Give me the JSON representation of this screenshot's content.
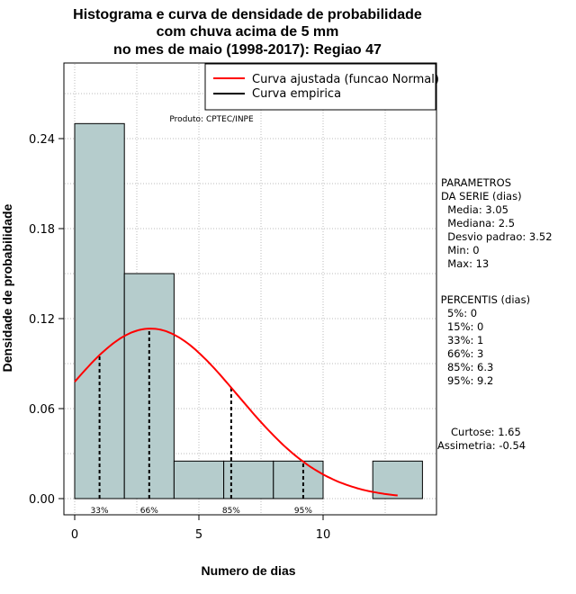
{
  "chart_data": {
    "type": "bar",
    "title": [
      "Histograma e curva de densidade de probabilidade",
      "com chuva acima de 5 mm",
      "no mes de maio (1998-2017): Regiao 47"
    ],
    "xlabel": "Numero de dias",
    "ylabel": "Densidade de probabilidade",
    "xlim": [
      -0.5,
      14.5
    ],
    "ylim": [
      -0.01,
      0.29
    ],
    "x_ticks": [
      0,
      5,
      10
    ],
    "y_ticks": [
      0.0,
      0.06,
      0.12,
      0.18,
      0.24
    ],
    "y_tick_labels": [
      "0.00",
      "0.06",
      "0.12",
      "0.18",
      "0.24"
    ],
    "grid": true,
    "bar_color": "#b5cccc",
    "bins": [
      {
        "x0": 0,
        "x1": 2,
        "density": 0.25
      },
      {
        "x0": 2,
        "x1": 4,
        "density": 0.15
      },
      {
        "x0": 4,
        "x1": 6,
        "density": 0.025
      },
      {
        "x0": 6,
        "x1": 8,
        "density": 0.025
      },
      {
        "x0": 8,
        "x1": 10,
        "density": 0.025
      },
      {
        "x0": 10,
        "x1": 12,
        "density": 0.0
      },
      {
        "x0": 12,
        "x1": 14,
        "density": 0.025
      }
    ],
    "fitted_curve": {
      "name": "Curva ajustada (funcao Normal)",
      "color": "#ff0000",
      "mean": 3.05,
      "sd": 3.52,
      "x_from": 0,
      "x_to": 13
    },
    "empirical_curve": {
      "name": "Curva empirica",
      "color": "#000000"
    },
    "legend_position": "top-right",
    "source_note": "Produto: CPTEC/INPE",
    "percentile_lines": [
      {
        "label": "33%",
        "x": 1
      },
      {
        "label": "66%",
        "x": 3
      },
      {
        "label": "85%",
        "x": 6.3
      },
      {
        "label": "95%",
        "x": 9.2
      }
    ]
  },
  "parametros": {
    "lines": [
      "PARAMETROS",
      "DA SERIE (dias)",
      "  Media: 3.05",
      "  Mediana: 2.5",
      "  Desvio padrao: 3.52",
      "  Min: 0",
      "  Max: 13"
    ]
  },
  "percentis": {
    "lines": [
      " PERCENTIS (dias)",
      "   5%: 0",
      "   15%: 0",
      "   33%: 1",
      "   66%: 3",
      "   85%: 6.3",
      "   95%: 9.2"
    ]
  },
  "forma": {
    "lines": [
      "Curtose: 1.65",
      "Assimetria: -0.54"
    ]
  }
}
